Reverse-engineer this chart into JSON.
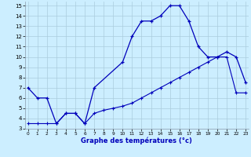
{
  "xlabel": "Graphe des températures (°c)",
  "bg_color": "#cceeff",
  "grid_color": "#aaccdd",
  "line_color": "#0000bb",
  "curve1_x": [
    0,
    1,
    2,
    3,
    4,
    5,
    6,
    7,
    10,
    11,
    12,
    13,
    14,
    15,
    16,
    17,
    18,
    19,
    20,
    21,
    22,
    23
  ],
  "curve1_y": [
    7.0,
    6.0,
    6.0,
    3.5,
    4.5,
    4.5,
    3.5,
    7.0,
    9.5,
    12.0,
    13.5,
    13.5,
    14.0,
    15.0,
    15.0,
    13.5,
    11.0,
    10.0,
    10.0,
    10.5,
    10.0,
    7.5
  ],
  "curve2_x": [
    0,
    1,
    2,
    3,
    4,
    5,
    6,
    7,
    8,
    9,
    10,
    11,
    12,
    13,
    14,
    15,
    16,
    17,
    18,
    19,
    20,
    21,
    22,
    23
  ],
  "curve2_y": [
    3.5,
    3.5,
    3.5,
    3.5,
    4.5,
    4.5,
    3.5,
    4.5,
    4.8,
    5.0,
    5.2,
    5.5,
    6.0,
    6.5,
    7.0,
    7.5,
    8.0,
    8.5,
    9.0,
    9.5,
    10.0,
    10.0,
    6.5,
    6.5
  ],
  "xmin": 0,
  "xmax": 23,
  "ymin": 3,
  "ymax": 15,
  "yticks": [
    3,
    4,
    5,
    6,
    7,
    8,
    9,
    10,
    11,
    12,
    13,
    14,
    15
  ]
}
